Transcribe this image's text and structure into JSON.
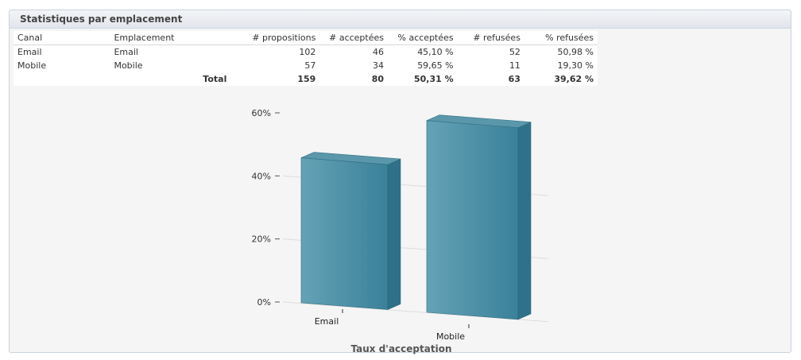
{
  "panel": {
    "title": "Statistiques par emplacement"
  },
  "table": {
    "headers": [
      "Canal",
      "Emplacement",
      "# propositions",
      "# acceptées",
      "% acceptées",
      "# refusées",
      "% refusées"
    ],
    "rows": [
      [
        "Email",
        "Email",
        "102",
        "46",
        "45,10 %",
        "52",
        "50,98 %"
      ],
      [
        "Mobile",
        "Mobile",
        "57",
        "34",
        "59,65 %",
        "11",
        "19,30 %"
      ]
    ],
    "total": [
      "",
      "Total",
      "159",
      "80",
      "50,31 %",
      "63",
      "39,62 %"
    ]
  },
  "chart_data": {
    "type": "bar",
    "title": "",
    "xlabel": "Taux d'acceptation",
    "ylabel": "",
    "categories": [
      "Email",
      "Mobile"
    ],
    "values": [
      45.1,
      59.65
    ],
    "ylim": [
      0,
      60
    ],
    "yticks": [
      "0%",
      "20%",
      "40%",
      "60%"
    ],
    "color": "#4b8fa8",
    "grid": true,
    "legend": "none"
  }
}
